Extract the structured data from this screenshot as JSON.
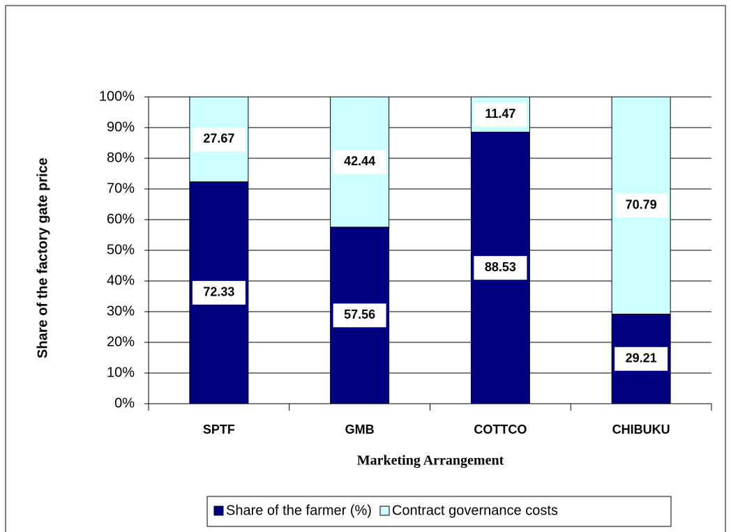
{
  "chart_data": {
    "type": "stacked_bar",
    "categories": [
      "SPTF",
      "GMB",
      "COTTCO",
      "CHIBUKU"
    ],
    "series": [
      {
        "name": "Share of the farmer (%)",
        "color": "#000080",
        "values": [
          72.33,
          57.56,
          88.53,
          29.21
        ]
      },
      {
        "name": "Contract governance costs",
        "color": "#ccffff",
        "values": [
          27.67,
          42.44,
          11.47,
          70.79
        ]
      }
    ],
    "y_axis_label": "Share of the factory gate price",
    "x_axis_label": "Marketing Arrangement",
    "ylim": [
      0,
      100
    ],
    "yticks": [
      {
        "value": 0,
        "label": "0%"
      },
      {
        "value": 10,
        "label": "10%"
      },
      {
        "value": 20,
        "label": "20%"
      },
      {
        "value": 30,
        "label": "30%"
      },
      {
        "value": 40,
        "label": "40%"
      },
      {
        "value": 50,
        "label": "50%"
      },
      {
        "value": 60,
        "label": "60%"
      },
      {
        "value": 70,
        "label": "70%"
      },
      {
        "value": 80,
        "label": "80%"
      },
      {
        "value": 90,
        "label": "90%"
      },
      {
        "value": 100,
        "label": "100%"
      }
    ],
    "grid": true,
    "legend": "bottom"
  }
}
